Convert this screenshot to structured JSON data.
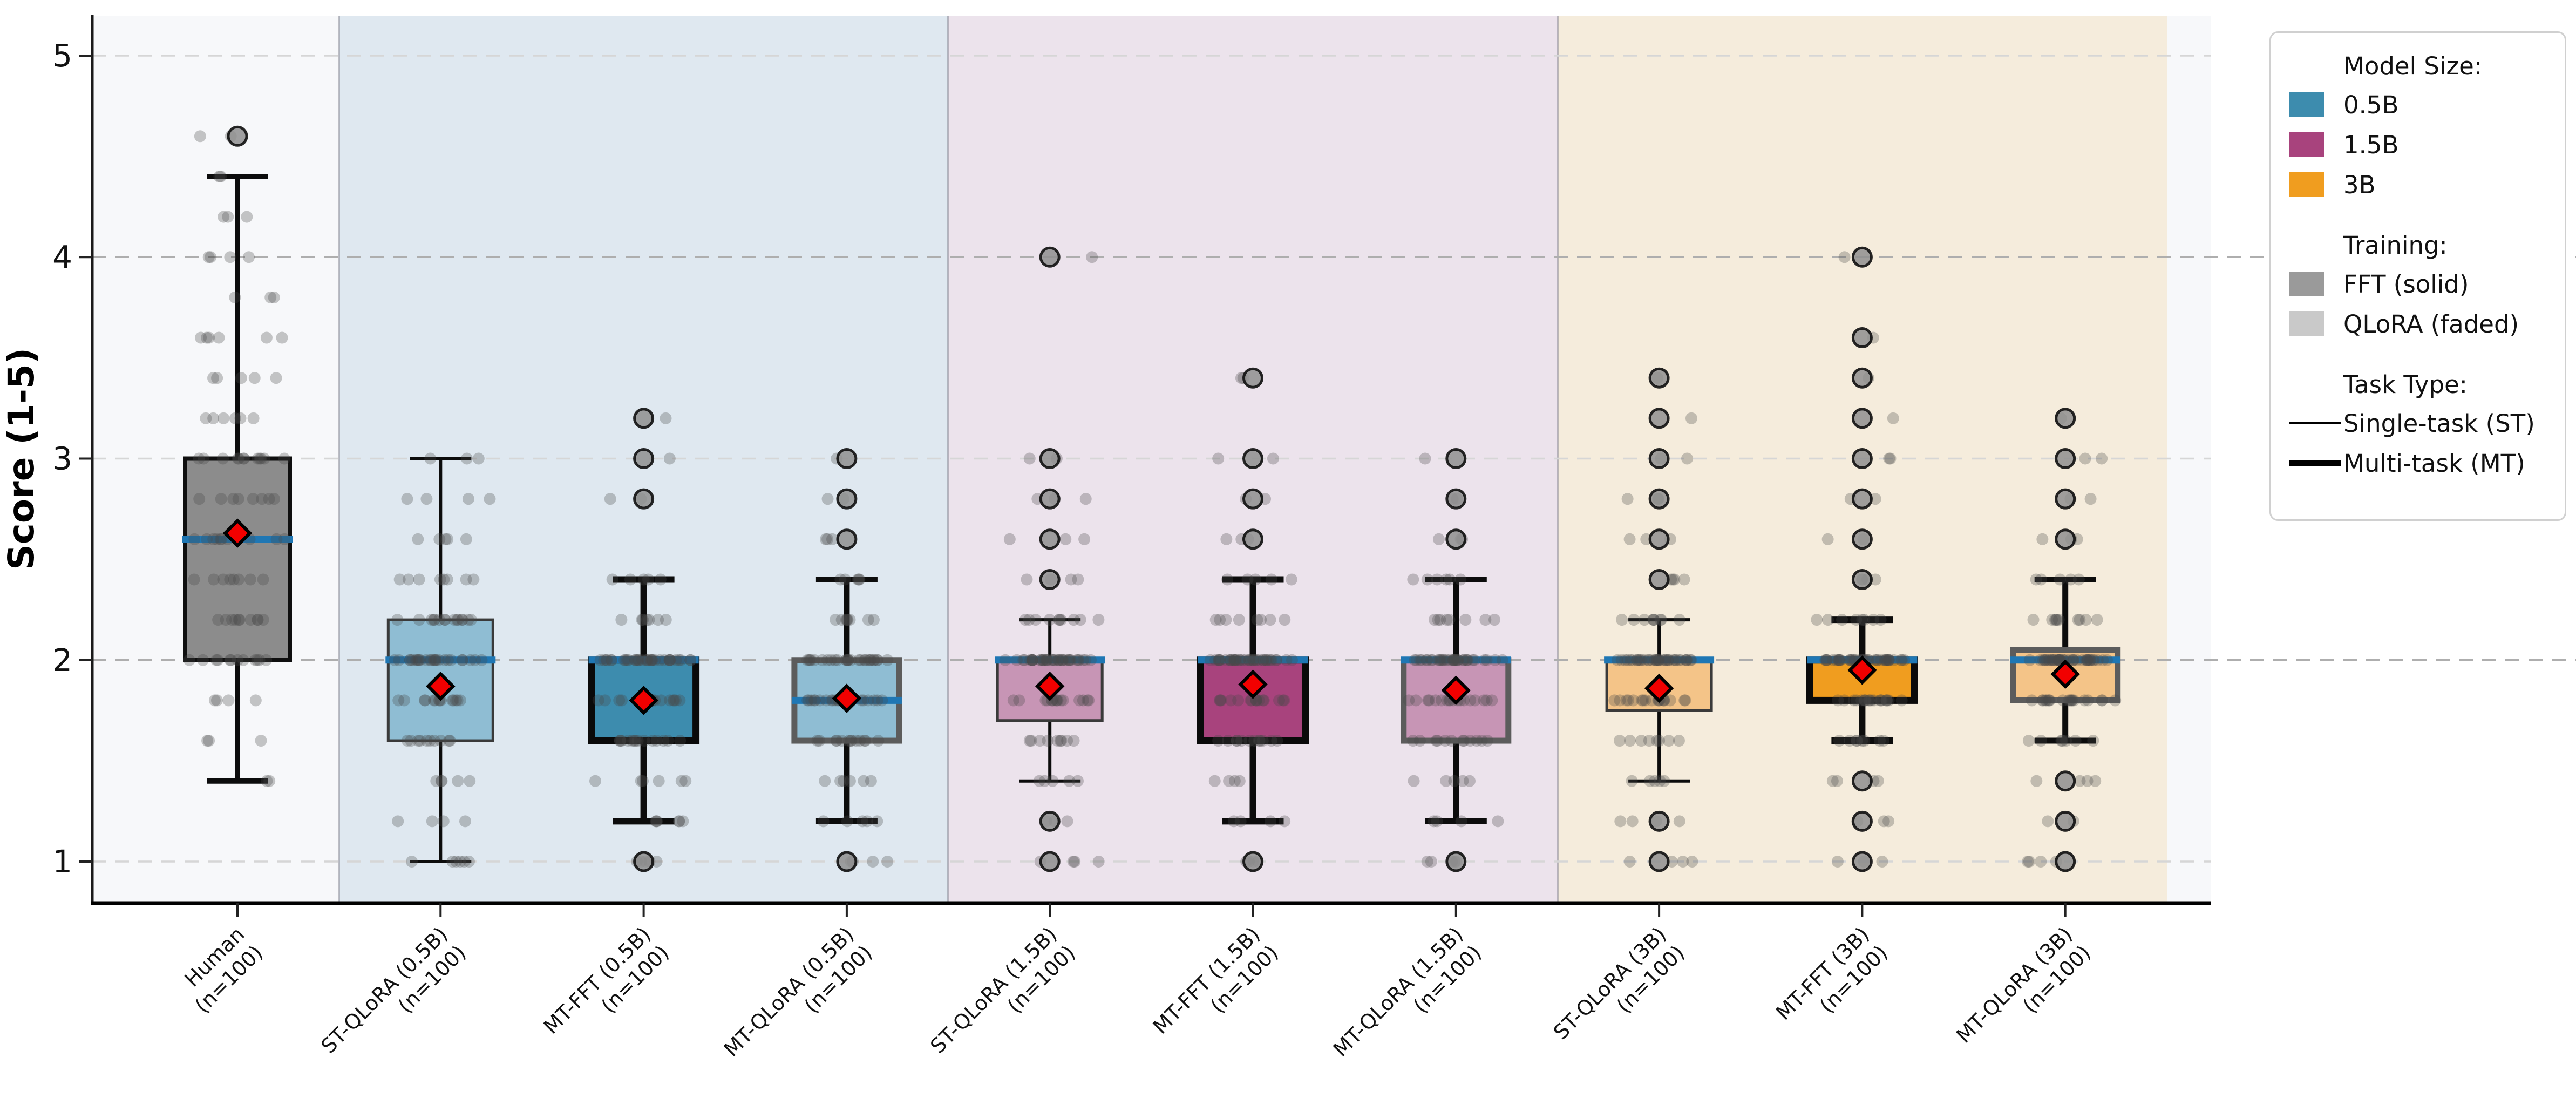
{
  "chart_data": {
    "type": "box",
    "title": "",
    "xlabel": "",
    "ylabel": "Score (1-5)",
    "ylim": [
      0.8,
      5.2
    ],
    "yticks": [
      1,
      2,
      3,
      4,
      5
    ],
    "grid": "horizontal-dashed",
    "reference_lines": [
      2,
      4
    ],
    "legend_position": "outside-top-right",
    "colors": {
      "median_line": "#1f77b4",
      "mean_marker_fill": "#f20000",
      "mean_marker_edge": "#000000",
      "strip_point": "#4a4a4a",
      "flier_fill": "#8f8f8f",
      "flier_edge": "#101010",
      "axis": "#111111",
      "grid_light": "#d6d6d6",
      "grid_dark": "#aeaeae",
      "band_divider": "#82828d"
    },
    "bands": [
      {
        "name": "human",
        "color": "#f7f8fa"
      },
      {
        "name": "0.5B",
        "color": "#dfe8f0"
      },
      {
        "name": "1.5B",
        "color": "#ece3ec"
      },
      {
        "name": "3B",
        "color": "#f5ecdc"
      },
      {
        "name": "right-margin",
        "color": "#f7f8fa"
      }
    ],
    "series": [
      {
        "label": "Human",
        "sublabel": "(n=100)",
        "n": 100,
        "size_group": "Human",
        "training": "Human",
        "task": "Human",
        "band": 0,
        "fill": "#8c8c8c",
        "stats": {
          "whislo": 1.4,
          "q1": 2.0,
          "med": 2.6,
          "q3": 3.0,
          "whishi": 4.4,
          "mean": 2.63
        },
        "fliers": [
          4.6
        ],
        "points": [
          [
            1.4,
            2
          ],
          [
            1.6,
            3
          ],
          [
            1.8,
            4
          ],
          [
            2.0,
            12
          ],
          [
            2.2,
            10
          ],
          [
            2.4,
            8
          ],
          [
            2.6,
            10
          ],
          [
            2.8,
            8
          ],
          [
            3.0,
            12
          ],
          [
            3.2,
            6
          ],
          [
            3.4,
            5
          ],
          [
            3.6,
            6
          ],
          [
            3.8,
            3
          ],
          [
            4.0,
            4
          ],
          [
            4.2,
            3
          ],
          [
            4.4,
            2
          ],
          [
            4.6,
            2
          ]
        ]
      },
      {
        "label": "ST-QLoRA (0.5B)",
        "sublabel": "(n=100)",
        "n": 100,
        "size_group": "0.5B",
        "training": "QLoRA",
        "task": "ST",
        "band": 1,
        "fill": "#8fbdd3",
        "stats": {
          "whislo": 1.0,
          "q1": 1.6,
          "med": 2.0,
          "q3": 2.2,
          "whishi": 3.0,
          "mean": 1.87
        },
        "fliers": [],
        "points": [
          [
            1.0,
            6
          ],
          [
            1.2,
            4
          ],
          [
            1.4,
            5
          ],
          [
            1.6,
            10
          ],
          [
            1.8,
            14
          ],
          [
            2.0,
            26
          ],
          [
            2.2,
            15
          ],
          [
            2.4,
            8
          ],
          [
            2.6,
            5
          ],
          [
            2.8,
            4
          ],
          [
            3.0,
            3
          ]
        ]
      },
      {
        "label": "MT-FFT (0.5B)",
        "sublabel": "(n=100)",
        "n": 100,
        "size_group": "0.5B",
        "training": "FFT",
        "task": "MT",
        "band": 1,
        "fill": "#3d8cae",
        "stats": {
          "whislo": 1.2,
          "q1": 1.6,
          "med": 2.0,
          "q3": 2.0,
          "whishi": 2.4,
          "mean": 1.8
        },
        "fliers": [
          1.0,
          2.8,
          3.0,
          3.2
        ],
        "points": [
          [
            1.0,
            5
          ],
          [
            1.2,
            6
          ],
          [
            1.4,
            6
          ],
          [
            1.6,
            14
          ],
          [
            1.8,
            18
          ],
          [
            2.0,
            35
          ],
          [
            2.2,
            7
          ],
          [
            2.4,
            5
          ],
          [
            2.8,
            2
          ],
          [
            3.0,
            1
          ],
          [
            3.2,
            1
          ]
        ]
      },
      {
        "label": "MT-QLoRA (0.5B)",
        "sublabel": "(n=100)",
        "n": 100,
        "size_group": "0.5B",
        "training": "QLoRA",
        "task": "MT",
        "band": 1,
        "fill": "#8fbdd3",
        "stats": {
          "whislo": 1.2,
          "q1": 1.6,
          "med": 1.8,
          "q3": 2.0,
          "whishi": 2.4,
          "mean": 1.81
        },
        "fliers": [
          1.0,
          2.6,
          2.8,
          3.0
        ],
        "points": [
          [
            1.0,
            4
          ],
          [
            1.2,
            5
          ],
          [
            1.4,
            6
          ],
          [
            1.6,
            13
          ],
          [
            1.8,
            25
          ],
          [
            2.0,
            28
          ],
          [
            2.2,
            8
          ],
          [
            2.4,
            5
          ],
          [
            2.6,
            3
          ],
          [
            2.8,
            2
          ],
          [
            3.0,
            1
          ]
        ]
      },
      {
        "label": "ST-QLoRA (1.5B)",
        "sublabel": "(n=100)",
        "n": 100,
        "size_group": "1.5B",
        "training": "QLoRA",
        "task": "ST",
        "band": 2,
        "fill": "#c795b5",
        "stats": {
          "whislo": 1.4,
          "q1": 1.7,
          "med": 2.0,
          "q3": 2.0,
          "whishi": 2.2,
          "mean": 1.87
        },
        "fliers": [
          1.0,
          1.2,
          2.4,
          2.6,
          2.8,
          3.0,
          4.0
        ],
        "points": [
          [
            1.0,
            4
          ],
          [
            1.2,
            3
          ],
          [
            1.4,
            5
          ],
          [
            1.6,
            9
          ],
          [
            1.8,
            16
          ],
          [
            2.0,
            40
          ],
          [
            2.2,
            10
          ],
          [
            2.4,
            4
          ],
          [
            2.6,
            3
          ],
          [
            2.8,
            3
          ],
          [
            3.0,
            2
          ],
          [
            4.0,
            1
          ]
        ]
      },
      {
        "label": "MT-FFT (1.5B)",
        "sublabel": "(n=100)",
        "n": 100,
        "size_group": "1.5B",
        "training": "FFT",
        "task": "MT",
        "band": 2,
        "fill": "#a8437d",
        "stats": {
          "whislo": 1.2,
          "q1": 1.6,
          "med": 2.0,
          "q3": 2.0,
          "whishi": 2.4,
          "mean": 1.88
        },
        "fliers": [
          1.0,
          2.6,
          2.8,
          3.0,
          3.4
        ],
        "points": [
          [
            1.0,
            4
          ],
          [
            1.2,
            4
          ],
          [
            1.4,
            4
          ],
          [
            1.6,
            12
          ],
          [
            1.8,
            16
          ],
          [
            2.0,
            38
          ],
          [
            2.2,
            8
          ],
          [
            2.4,
            5
          ],
          [
            2.6,
            3
          ],
          [
            2.8,
            2
          ],
          [
            3.0,
            2
          ],
          [
            3.4,
            2
          ]
        ]
      },
      {
        "label": "MT-QLoRA (1.5B)",
        "sublabel": "(n=100)",
        "n": 100,
        "size_group": "1.5B",
        "training": "QLoRA",
        "task": "MT",
        "band": 2,
        "fill": "#c795b5",
        "stats": {
          "whislo": 1.2,
          "q1": 1.6,
          "med": 2.0,
          "q3": 2.0,
          "whishi": 2.4,
          "mean": 1.85
        },
        "fliers": [
          1.0,
          2.6,
          2.8,
          3.0
        ],
        "points": [
          [
            1.0,
            5
          ],
          [
            1.2,
            4
          ],
          [
            1.4,
            5
          ],
          [
            1.6,
            12
          ],
          [
            1.8,
            18
          ],
          [
            2.0,
            36
          ],
          [
            2.2,
            8
          ],
          [
            2.4,
            6
          ],
          [
            2.6,
            3
          ],
          [
            2.8,
            2
          ],
          [
            3.0,
            1
          ]
        ]
      },
      {
        "label": "ST-QLoRA (3B)",
        "sublabel": "(n=100)",
        "n": 100,
        "size_group": "3B",
        "training": "QLoRA",
        "task": "ST",
        "band": 3,
        "fill": "#f4c488",
        "stats": {
          "whislo": 1.4,
          "q1": 1.75,
          "med": 2.0,
          "q3": 2.0,
          "whishi": 2.2,
          "mean": 1.86
        },
        "fliers": [
          1.0,
          1.2,
          2.4,
          2.6,
          2.8,
          3.0,
          3.2,
          3.4
        ],
        "points": [
          [
            1.0,
            4
          ],
          [
            1.2,
            4
          ],
          [
            1.4,
            5
          ],
          [
            1.6,
            8
          ],
          [
            1.8,
            18
          ],
          [
            2.0,
            38
          ],
          [
            2.2,
            9
          ],
          [
            2.4,
            4
          ],
          [
            2.6,
            3
          ],
          [
            2.8,
            3
          ],
          [
            3.0,
            2
          ],
          [
            3.2,
            1
          ],
          [
            3.4,
            1
          ]
        ]
      },
      {
        "label": "MT-FFT (3B)",
        "sublabel": "(n=100)",
        "n": 100,
        "size_group": "3B",
        "training": "FFT",
        "task": "MT",
        "band": 3,
        "fill": "#f09d1f",
        "stats": {
          "whislo": 1.6,
          "q1": 1.8,
          "med": 2.0,
          "q3": 2.0,
          "whishi": 2.2,
          "mean": 1.95
        },
        "fliers": [
          1.0,
          1.2,
          1.4,
          2.4,
          2.6,
          2.8,
          3.0,
          3.2,
          3.4,
          3.6,
          4.0
        ],
        "points": [
          [
            1.0,
            3
          ],
          [
            1.2,
            3
          ],
          [
            1.4,
            4
          ],
          [
            1.6,
            8
          ],
          [
            1.8,
            20
          ],
          [
            2.0,
            40
          ],
          [
            2.2,
            8
          ],
          [
            2.4,
            4
          ],
          [
            2.6,
            2
          ],
          [
            2.8,
            2
          ],
          [
            3.0,
            2
          ],
          [
            3.2,
            1
          ],
          [
            3.4,
            1
          ],
          [
            3.6,
            1
          ],
          [
            4.0,
            1
          ]
        ]
      },
      {
        "label": "MT-QLoRA (3B)",
        "sublabel": "(n=100)",
        "n": 100,
        "size_group": "3B",
        "training": "QLoRA",
        "task": "MT",
        "band": 3,
        "fill": "#f4c488",
        "stats": {
          "whislo": 1.6,
          "q1": 1.8,
          "med": 2.0,
          "q3": 2.05,
          "whishi": 2.4,
          "mean": 1.93
        },
        "fliers": [
          1.0,
          1.2,
          1.4,
          2.6,
          2.8,
          3.0,
          3.2
        ],
        "points": [
          [
            1.0,
            4
          ],
          [
            1.2,
            2
          ],
          [
            1.4,
            4
          ],
          [
            1.6,
            7
          ],
          [
            1.8,
            20
          ],
          [
            2.0,
            40
          ],
          [
            2.2,
            10
          ],
          [
            2.4,
            5
          ],
          [
            2.6,
            3
          ],
          [
            2.8,
            2
          ],
          [
            3.0,
            2
          ],
          [
            3.2,
            1
          ]
        ]
      }
    ]
  },
  "legend": {
    "sections": [
      {
        "title": "Model Size:",
        "items": [
          {
            "type": "swatch",
            "color": "#3d8cae",
            "label": "0.5B"
          },
          {
            "type": "swatch",
            "color": "#a8437d",
            "label": "1.5B"
          },
          {
            "type": "swatch",
            "color": "#f09d1f",
            "label": "3B"
          }
        ]
      },
      {
        "title": "Training:",
        "items": [
          {
            "type": "swatch",
            "color": "#9a9a9a",
            "label": "FFT (solid)"
          },
          {
            "type": "swatch",
            "color": "#c9c9c9",
            "label": "QLoRA (faded)"
          }
        ]
      },
      {
        "title": "Task Type:",
        "items": [
          {
            "type": "line",
            "weight": "thin",
            "label": "Single-task (ST)"
          },
          {
            "type": "line",
            "weight": "thick",
            "label": "Multi-task (MT)"
          }
        ]
      }
    ]
  }
}
